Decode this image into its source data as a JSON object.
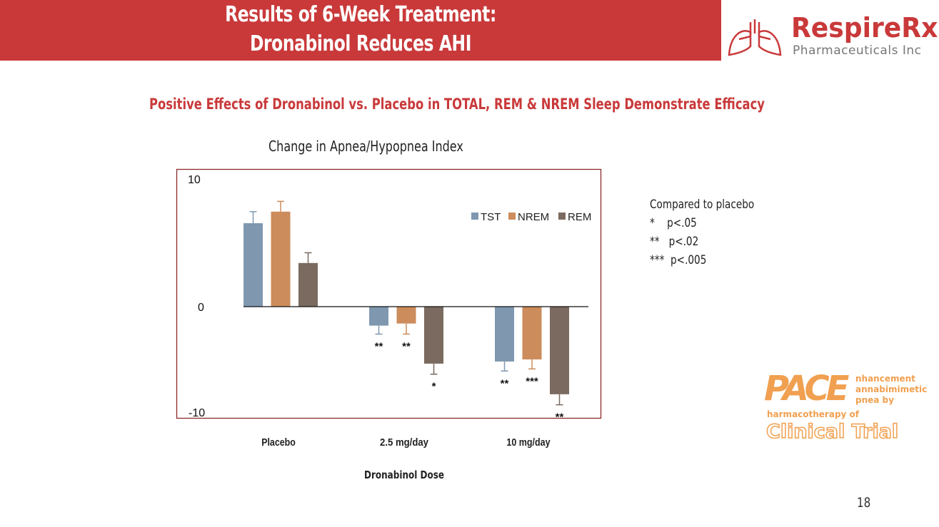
{
  "header": {
    "title_line1": "Results of 6-Week Treatment:",
    "title_line2": "Dronabinol Reduces AHI",
    "banner_color": "#c9393a"
  },
  "logo": {
    "name": "RespireRx",
    "subtitle": "Pharmaceuticals Inc",
    "icon": "lungs-icon"
  },
  "subtitle": "Positive Effects of Dronabinol vs. Placebo in TOTAL, REM & NREM Sleep Demonstrate Efficacy",
  "chart_data": {
    "type": "bar",
    "title": "Change in Apnea/Hypopnea Index",
    "xlabel": "Dronabinol Dose",
    "ylabel": "",
    "categories": [
      "Placebo",
      "2.5 mg/day",
      "10 mg/day"
    ],
    "ytick_labels": [
      "10",
      "0",
      "-10"
    ],
    "ylim": [
      -10,
      10
    ],
    "grid": false,
    "legend_position": "top-right",
    "series": [
      {
        "name": "TST",
        "color": "#7f98b0",
        "values": [
          6.5,
          -1.8,
          -5.2
        ],
        "error_ends": [
          7.4,
          -2.6,
          -6.1
        ],
        "significance": [
          "",
          "**",
          "**"
        ]
      },
      {
        "name": "NREM",
        "color": "#cc8c5c",
        "values": [
          7.4,
          -1.6,
          -5.0
        ],
        "error_ends": [
          8.2,
          -2.6,
          -5.9
        ],
        "significance": [
          "",
          "**",
          "***"
        ]
      },
      {
        "name": "REM",
        "color": "#7a6a5f",
        "values": [
          3.4,
          -5.4,
          -8.3
        ],
        "error_ends": [
          4.2,
          -6.4,
          -9.3
        ],
        "significance": [
          "",
          "*",
          "**"
        ]
      }
    ]
  },
  "notes": {
    "heading": "Compared to placebo",
    "lines": [
      "*    p<.05",
      "**   p<.02",
      "***  p<.005"
    ]
  },
  "pace_logo": {
    "letters": "PACE",
    "lines": [
      "nhancement",
      "annabimimetic",
      "pnea by",
      "harmacotherapy of"
    ],
    "footer": "Clinical Trial"
  },
  "page_number": "18"
}
